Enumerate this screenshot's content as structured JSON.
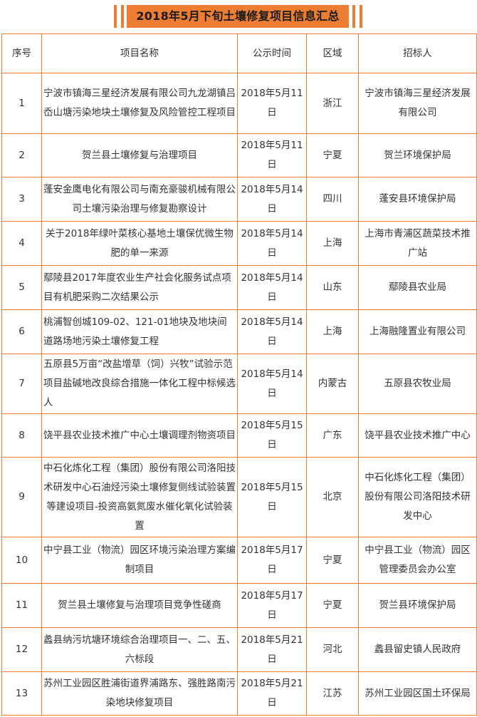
{
  "title": "2018年5月下旬土壤修复项目信息汇总",
  "colors": {
    "accent": "#ED7D31"
  },
  "table": {
    "headers": [
      "序号",
      "项目名称",
      "公示时间",
      "区域",
      "招标人"
    ],
    "rows": [
      [
        "1",
        "宁波市镇海三星经济发展有限公司九龙湖镇吕岙山塘污染地块土壤修复及风险管控工程项目",
        "2018年5月11日",
        "浙江",
        "宁波市镇海三星经济发展有限公司"
      ],
      [
        "2",
        "贺兰县土壤修复与治理项目",
        "2018年5月11日",
        "宁夏",
        "贺兰环境保护局"
      ],
      [
        "3",
        "蓬安金鹰电化有限公司与南充豪骏机械有限公司土壤污染治理与修复勘察设计",
        "2018年5月14日",
        "四川",
        "蓬安县环境保护局"
      ],
      [
        "4",
        "关于2018年绿叶菜核心基地土壤保优微生物肥的单一来源",
        "2018年5月14日",
        "上海",
        "上海市青浦区蔬菜技术推广站"
      ],
      [
        "5",
        "鄢陵县2017年度农业生产社会化服务试点项目有机肥采购二次结果公示",
        "2018年5月14日",
        "山东",
        "鄢陵县农业局"
      ],
      [
        "6",
        "桃浦智创城109-02、121-01地块及地块间道路场地污染土壤修复工程",
        "2018年5月14日",
        "上海",
        "上海融隆置业有限公司"
      ],
      [
        "7",
        "五原县5万亩“改盐增草（饲）兴牧”试验示范项目盐碱地改良综合措施一体化工程中标候选人",
        "2018年5月14日",
        "内蒙古",
        "五原县农牧业局"
      ],
      [
        "8",
        "饶平县农业技术推广中心土壤调理剂物资项目",
        "2018年5月15日",
        "广东",
        "饶平县农业技术推广中心"
      ],
      [
        "9",
        "中石化炼化工程（集团）股份有限公司洛阳技术研发中心石油烃污染土壤修复侧线试验装置等建设项目-投资高氨氮废水催化氧化试验装置",
        "2018年5月15日",
        "北京",
        "中石化炼化工程（集团）股份有限公司洛阳技术研发中心"
      ],
      [
        "10",
        "中宁县工业（物流）园区环境污染治理方案编制项目",
        "2018年5月17日",
        "宁夏",
        "中宁县工业（物流）园区管理委员会办公室"
      ],
      [
        "11",
        "贺兰县土壤修复与治理项目竞争性磋商",
        "2018年5月17日",
        "宁夏",
        "贺兰县环境保护局"
      ],
      [
        "12",
        "蠡县纳污坑塘环境综合治理项目一、二、五、六标段",
        "2018年5月21日",
        "河北",
        "蠡县留史镇人民政府"
      ],
      [
        "13",
        "苏州工业园区胜浦街道界浦路东、强胜路南污染地块修复项目",
        "2018年5月21日",
        "江苏",
        "苏州工业园区国土环保局"
      ]
    ]
  }
}
